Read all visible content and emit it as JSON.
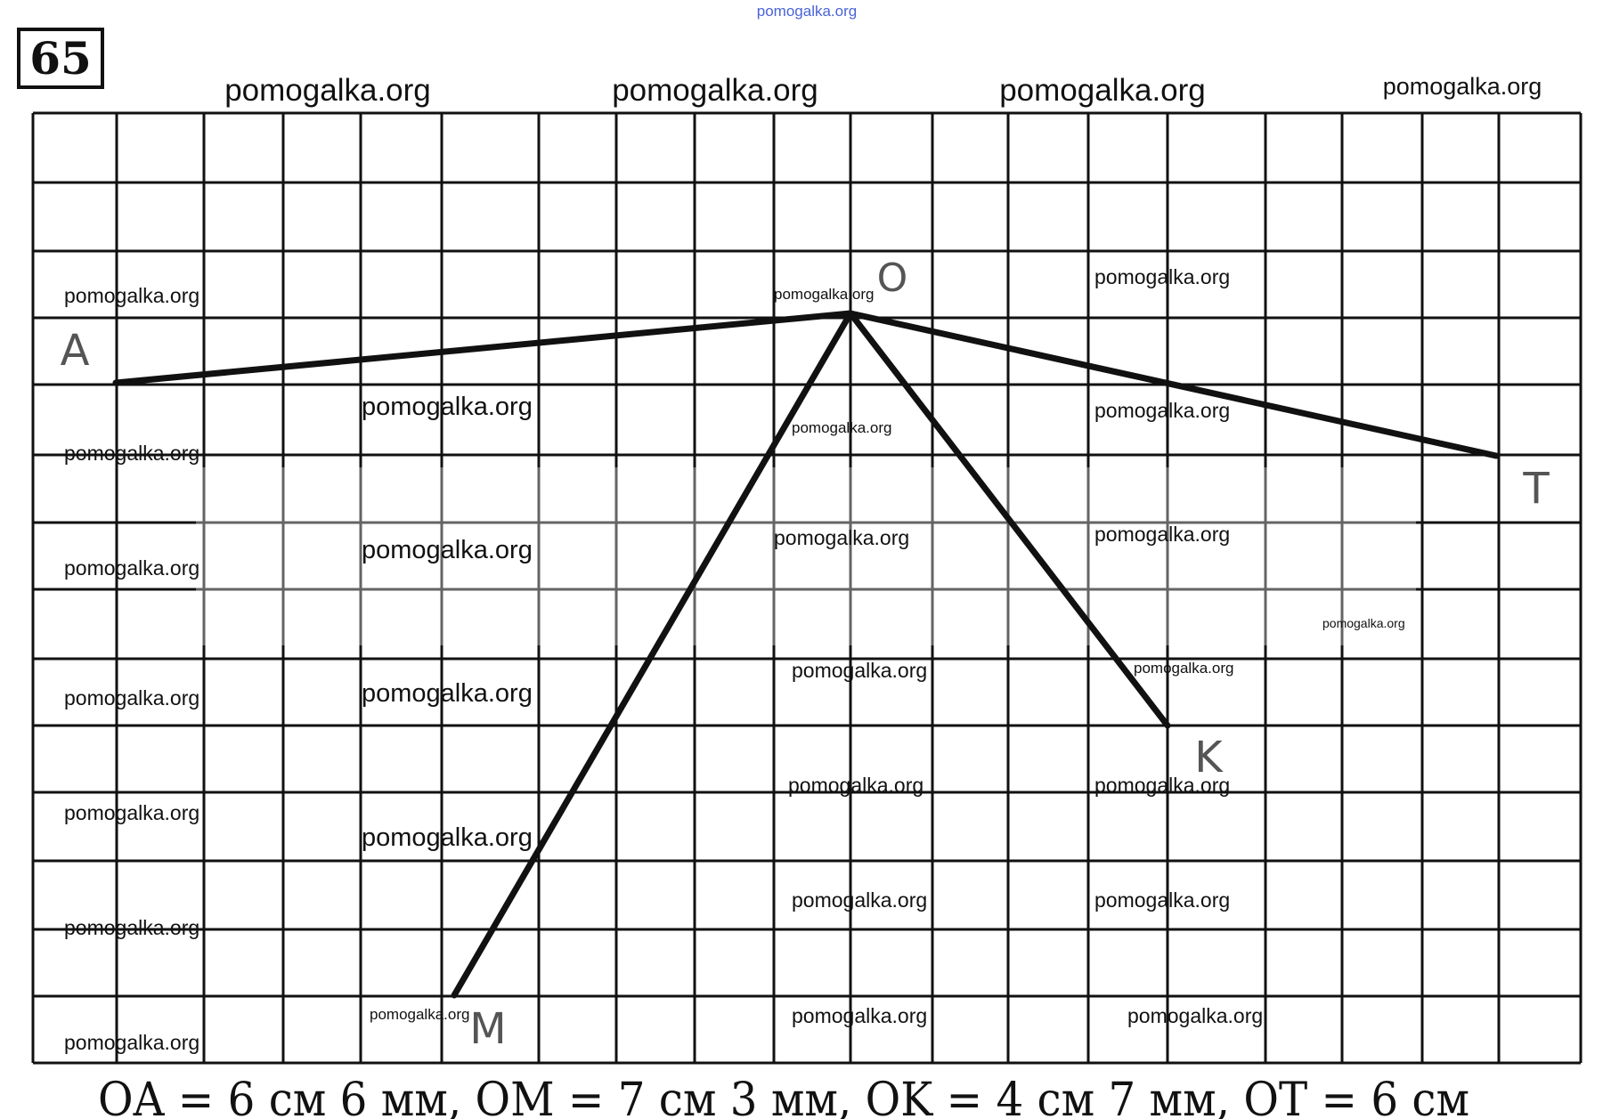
{
  "problem_number": "65",
  "top_watermark": "pomogalka.org",
  "header_watermarks": [
    "pomogalka.org",
    "pomogalka.org",
    "pomogalka.org",
    "pomogalka.org"
  ],
  "points": {
    "O": "O",
    "A": "A",
    "T": "T",
    "M": "M",
    "K": "K"
  },
  "caption": "OA = 6 см 6 мм, OM = 7 см 3 мм, OK = 4 см 7 мм, OT = 6 см",
  "watermarks": [
    "pomogalka.org",
    "pomogalka.org",
    "pomogalka.org",
    "pomogalka.org",
    "pomogalka.org",
    "pomogalka.org",
    "pomogalka.org",
    "pomogalka.org",
    "pomogalka.org",
    "pomogalka.org",
    "pomogalka.org",
    "pomogalka.org",
    "pomogalka.org",
    "pomogalka.org",
    "pomogalka.org",
    "pomogalka.org",
    "pomogalka.org",
    "pomogalka.org",
    "pomogalka.org",
    "pomogalka.org",
    "pomogalka.org",
    "pomogalka.org",
    "pomogalka.org",
    "pomogalka.org",
    "pomogalka.org",
    "pomogalka.org"
  ]
}
